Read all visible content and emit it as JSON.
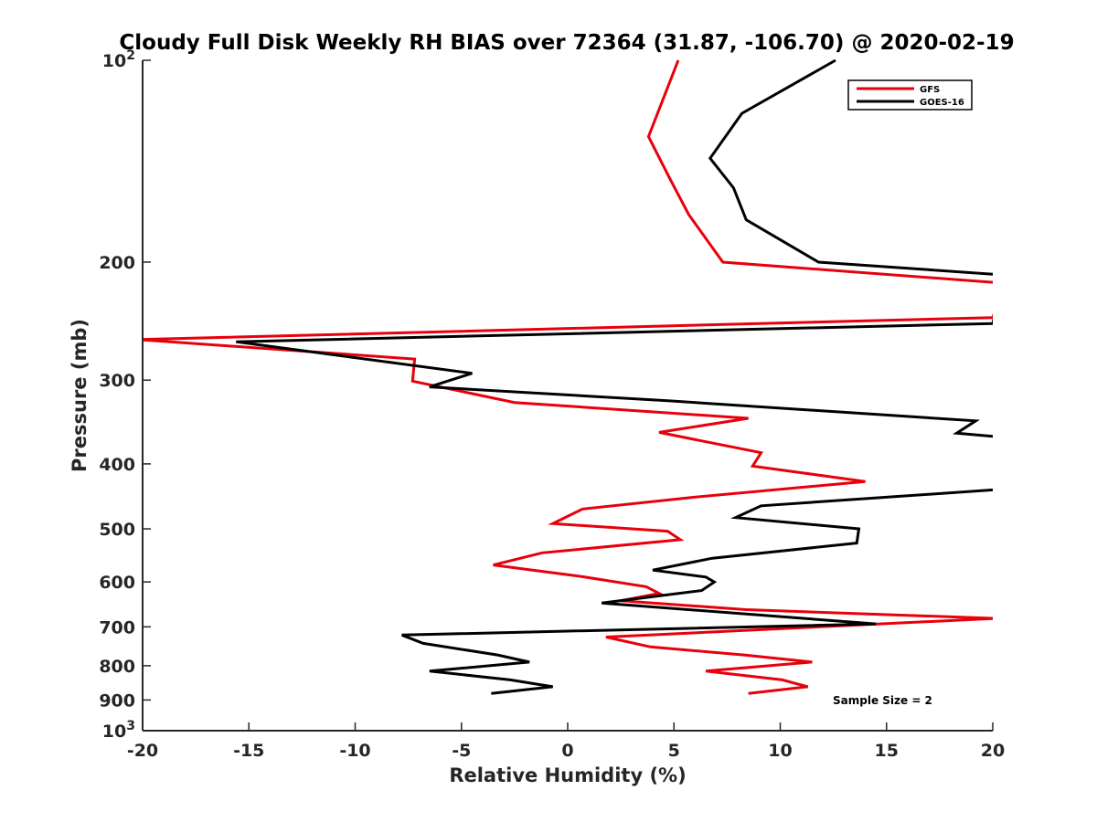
{
  "chart_data": {
    "type": "line",
    "title": "Cloudy Full Disk Weekly RH BIAS over 72364 (31.87, -106.70) @ 2020-02-19",
    "xlabel": "Relative Humidity (%)",
    "ylabel": "Pressure (mb)",
    "xlim": [
      -20,
      20
    ],
    "ylim": [
      100,
      1000
    ],
    "y_scale": "log",
    "y_reversed": true,
    "grid": false,
    "legend_placement": "top-right",
    "x_ticks": [
      "-20",
      "-15",
      "-10",
      "-5",
      "0",
      "5",
      "10",
      "15",
      "20"
    ],
    "y_ticks": [
      {
        "value": 100,
        "base": "10",
        "exp": "2"
      },
      {
        "value": 200,
        "label": "200"
      },
      {
        "value": 300,
        "label": "300"
      },
      {
        "value": 400,
        "label": "400"
      },
      {
        "value": 500,
        "label": "500"
      },
      {
        "value": 600,
        "label": "600"
      },
      {
        "value": 700,
        "label": "700"
      },
      {
        "value": 800,
        "label": "800"
      },
      {
        "value": 900,
        "label": "900"
      },
      {
        "value": 1000,
        "base": "10",
        "exp": "3"
      }
    ],
    "annotation": "Sample Size = 2",
    "series": [
      {
        "name": "GFS",
        "color": "#e8000b",
        "points": [
          [
            5.2,
            100
          ],
          [
            3.8,
            130
          ],
          [
            4.8,
            150
          ],
          [
            5.7,
            170
          ],
          [
            7.3,
            200
          ],
          [
            20.5,
            215
          ],
          [
            20,
            242
          ],
          [
            -20.2,
            261
          ],
          [
            -7.2,
            279
          ],
          [
            -7.3,
            301
          ],
          [
            -2.5,
            324
          ],
          [
            8.5,
            342
          ],
          [
            4.3,
            359
          ],
          [
            9.1,
            385
          ],
          [
            8.7,
            403
          ],
          [
            14.0,
            425
          ],
          [
            5.8,
            449
          ],
          [
            0.7,
            467
          ],
          [
            -0.7,
            491
          ],
          [
            4.7,
            504
          ],
          [
            5.3,
            519
          ],
          [
            -1.2,
            543
          ],
          [
            -3.5,
            566
          ],
          [
            0.5,
            588
          ],
          [
            3.7,
            610
          ],
          [
            4.3,
            624
          ],
          [
            2.5,
            640
          ],
          [
            8.4,
            660
          ],
          [
            20.1,
            680
          ],
          [
            1.8,
            725
          ],
          [
            3.9,
            750
          ],
          [
            8.3,
            771
          ],
          [
            11.5,
            790
          ],
          [
            6.5,
            815
          ],
          [
            10.1,
            840
          ],
          [
            11.3,
            860
          ],
          [
            8.5,
            880
          ]
        ]
      },
      {
        "name": "GOES-16",
        "color": "#000000",
        "points": [
          [
            12.6,
            100
          ],
          [
            8.2,
            120
          ],
          [
            6.7,
            140
          ],
          [
            7.8,
            155
          ],
          [
            8.4,
            173
          ],
          [
            11.8,
            200
          ],
          [
            20.5,
            209
          ],
          [
            20,
            247
          ],
          [
            -15.6,
            263
          ],
          [
            -4.5,
            293
          ],
          [
            -6.5,
            307
          ],
          [
            4.7,
            322
          ],
          [
            19.2,
            345
          ],
          [
            18.3,
            360
          ],
          [
            20.5,
            365
          ],
          [
            20.2,
            437
          ],
          [
            9.1,
            462
          ],
          [
            7.9,
            481
          ],
          [
            13.7,
            500
          ],
          [
            13.6,
            525
          ],
          [
            6.8,
            553
          ],
          [
            4.0,
            576
          ],
          [
            6.5,
            590
          ],
          [
            6.9,
            600
          ],
          [
            6.3,
            618
          ],
          [
            1.6,
            645
          ],
          [
            14.5,
            693
          ],
          [
            -7.8,
            720
          ],
          [
            -6.8,
            741
          ],
          [
            -3.3,
            771
          ],
          [
            -1.8,
            790
          ],
          [
            -6.5,
            815
          ],
          [
            -2.7,
            840
          ],
          [
            -0.7,
            860
          ],
          [
            -3.6,
            880
          ]
        ]
      }
    ]
  }
}
